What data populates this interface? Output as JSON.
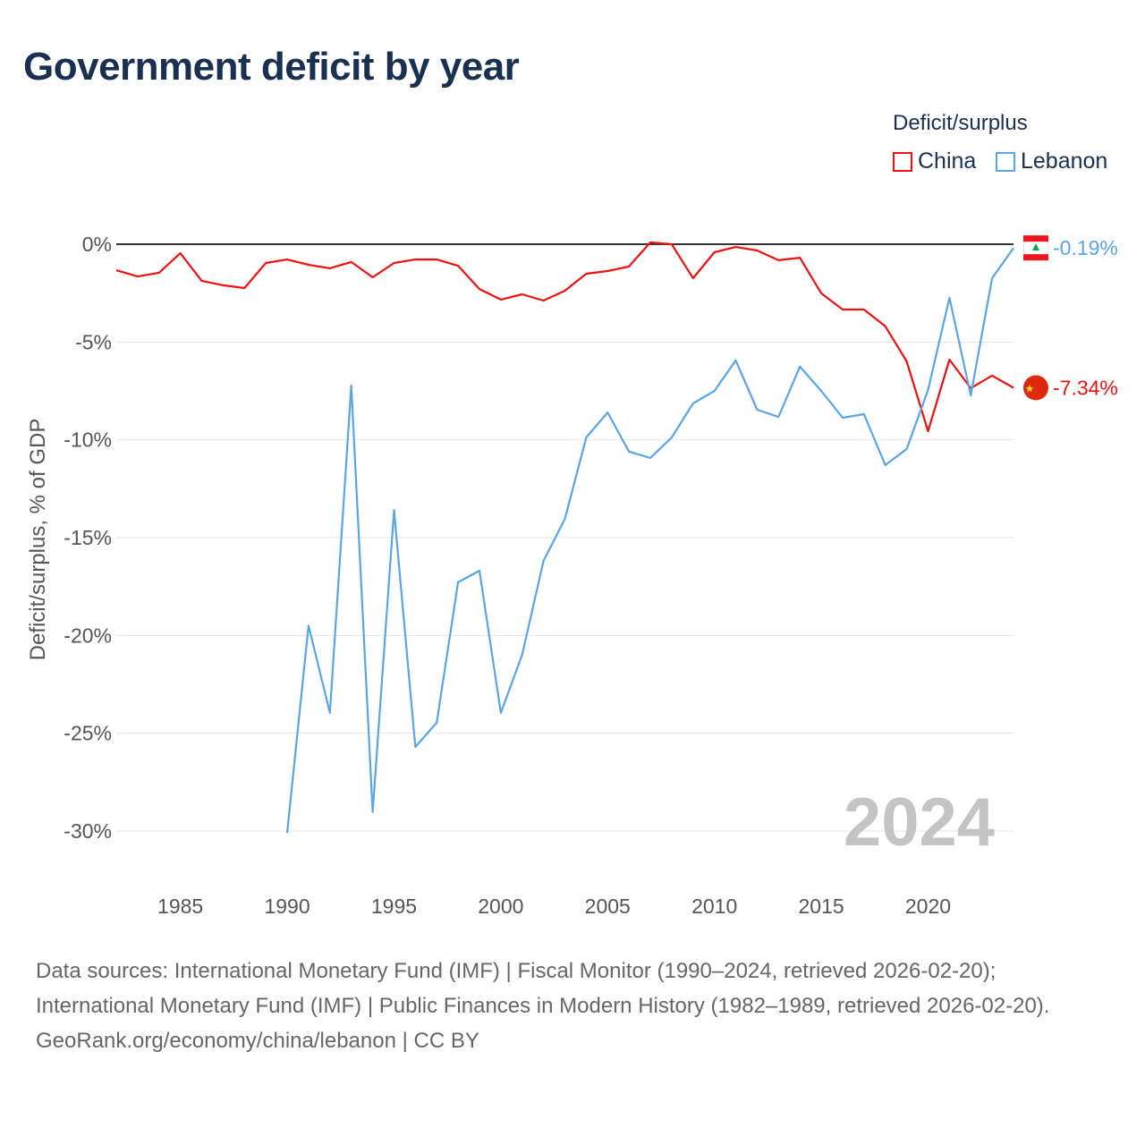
{
  "title": "Government deficit by year",
  "legend": {
    "title": "Deficit/surplus",
    "items": [
      {
        "name": "China",
        "color": "#ee1111"
      },
      {
        "name": "Lebanon",
        "color": "#5ba4e6"
      }
    ]
  },
  "source_lines": [
    "Data sources: International Monetary Fund (IMF) | Fiscal Monitor (1990–2024, retrieved 2026-02-20); International Monetary Fund (IMF) | Public Finances in Modern History (1982–1989, retrieved 2026-02-20).",
    "GeoRank.org/economy/china/lebanon | CC BY"
  ],
  "chart_data": {
    "type": "line",
    "title": "Government deficit by year",
    "ylabel": "Deficit/surplus, % of GDP",
    "xlabel": "",
    "ylim": [
      -30,
      0
    ],
    "xlim": [
      1982,
      2024
    ],
    "yticks": [
      0,
      -5,
      -10,
      -15,
      -20,
      -25,
      -30
    ],
    "ytick_labels": [
      "0%",
      "-5%",
      "-10%",
      "-15%",
      "-20%",
      "-25%",
      "-30%"
    ],
    "xticks": [
      1985,
      1990,
      1995,
      2000,
      2005,
      2010,
      2015,
      2020
    ],
    "xtick_labels": [
      "1985",
      "1990",
      "1995",
      "2000",
      "2005",
      "2010",
      "2015",
      "2020"
    ],
    "year_watermark": "2024",
    "grid": true,
    "series": [
      {
        "name": "China",
        "color": "#ee1111",
        "end_label": "-7.34%",
        "start_year": 1982,
        "values": [
          -1.33,
          -1.65,
          -1.46,
          -0.46,
          -1.87,
          -2.1,
          -2.24,
          -0.96,
          -0.78,
          -1.05,
          -1.23,
          -0.91,
          -1.69,
          -0.96,
          -0.78,
          -0.78,
          -1.1,
          -2.29,
          -2.83,
          -2.56,
          -2.88,
          -2.38,
          -1.51,
          -1.37,
          -1.14,
          0.09,
          0,
          -1.74,
          -0.41,
          -0.14,
          -0.32,
          -0.82,
          -0.69,
          -2.51,
          -3.34,
          -3.34,
          -4.2,
          -5.99,
          -9.56,
          -5.9,
          -7.36,
          -6.72,
          -7.34
        ]
      },
      {
        "name": "Lebanon",
        "color": "#5ba4e6",
        "end_label": "-0.19%",
        "start_year": 1990,
        "values": [
          -30.1,
          -19.5,
          -23.96,
          -7.22,
          -29.03,
          -13.6,
          -25.7,
          -24.46,
          -17.28,
          -16.69,
          -23.96,
          -20.99,
          -16.19,
          -14.04,
          -9.88,
          -8.6,
          -10.6,
          -10.93,
          -9.88,
          -8.14,
          -7.5,
          -5.94,
          -8.46,
          -8.83,
          -6.26,
          -7.5,
          -8.87,
          -8.69,
          -11.29,
          -10.47,
          -7.45,
          -2.74,
          -7.73,
          -1.74,
          -0.19
        ]
      }
    ]
  }
}
